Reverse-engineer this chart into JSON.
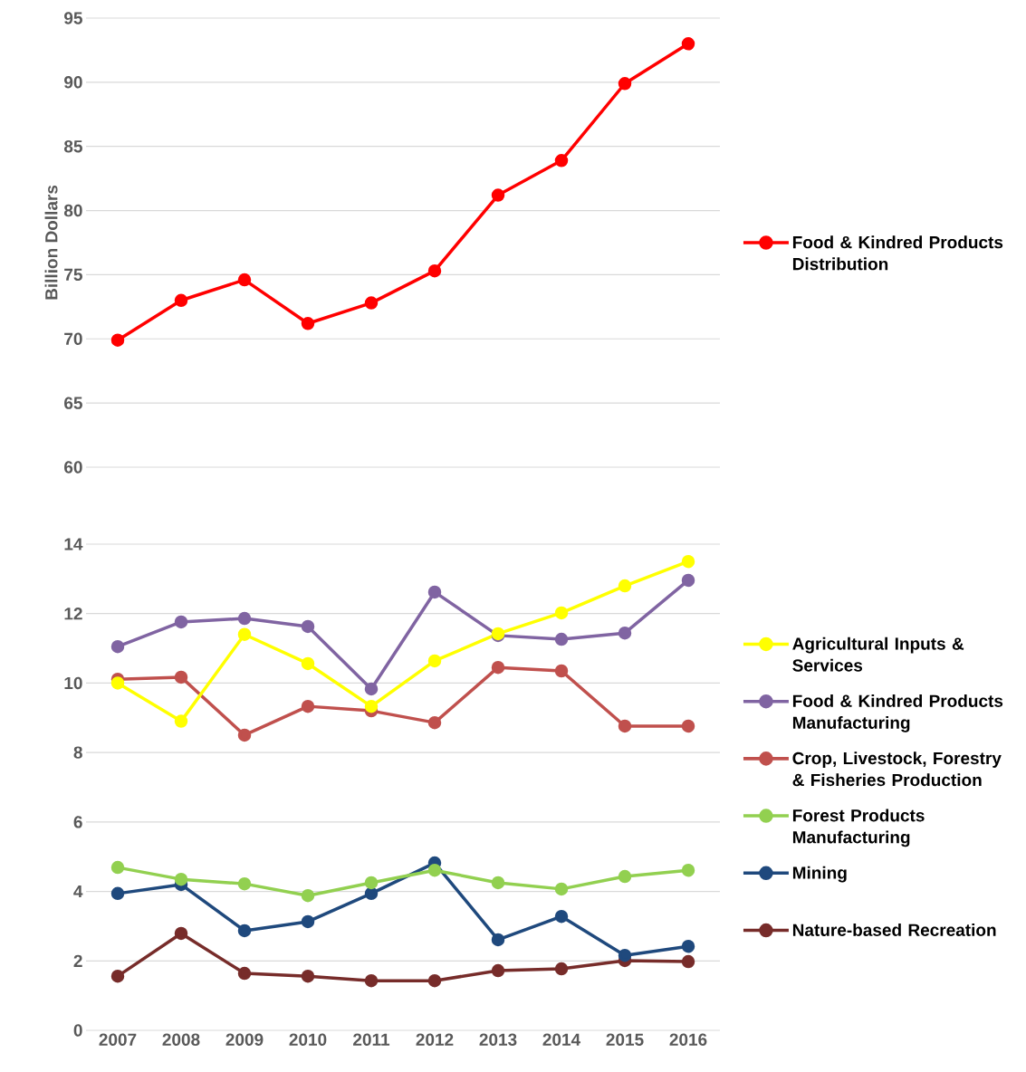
{
  "chart_data": [
    {
      "type": "line",
      "ylabel": "Billion Dollars",
      "categories": [
        "2007",
        "2008",
        "2009",
        "2010",
        "2011",
        "2012",
        "2013",
        "2014",
        "2015",
        "2016"
      ],
      "ylim": [
        60,
        95
      ],
      "yticks": [
        60,
        65,
        70,
        75,
        80,
        85,
        90,
        95
      ],
      "grid": "y",
      "legend": "right",
      "marker": "circle",
      "tick_labels": "y",
      "series": [
        {
          "name": "Food & Kindred Products Distribution",
          "color": "#ff0000",
          "values": [
            69.9,
            73.0,
            74.6,
            71.2,
            72.8,
            75.3,
            81.2,
            83.9,
            89.9,
            93.0
          ]
        }
      ]
    },
    {
      "type": "line",
      "categories": [
        "2007",
        "2008",
        "2009",
        "2010",
        "2011",
        "2012",
        "2013",
        "2014",
        "2015",
        "2016"
      ],
      "ylim": [
        0,
        14
      ],
      "yticks": [
        0,
        2,
        4,
        6,
        8,
        10,
        12,
        14
      ],
      "grid": "y",
      "legend": "right",
      "marker": "circle",
      "series": [
        {
          "name": "Agricultural Inputs & Services",
          "color": "#ffff00",
          "values": [
            10.0,
            8.9,
            11.4,
            10.56,
            9.33,
            10.64,
            11.42,
            12.02,
            12.8,
            13.5
          ]
        },
        {
          "name": "Food & Kindred Products Manufacturing",
          "color": "#8064a2",
          "values": [
            11.05,
            11.76,
            11.86,
            11.63,
            9.83,
            12.62,
            11.37,
            11.26,
            11.44,
            12.96
          ]
        },
        {
          "name": "Crop, Livestock, Forestry & Fisheries Production",
          "color": "#c0504d",
          "values": [
            10.11,
            10.17,
            8.5,
            9.33,
            9.2,
            8.86,
            10.45,
            10.35,
            8.76,
            8.76
          ]
        },
        {
          "name": "Forest Products Manufacturing",
          "color": "#92d050",
          "values": [
            4.69,
            4.35,
            4.22,
            3.88,
            4.25,
            4.61,
            4.25,
            4.07,
            4.43,
            4.61
          ]
        },
        {
          "name": "Mining",
          "color": "#1f497d",
          "values": [
            3.94,
            4.2,
            2.87,
            3.13,
            3.94,
            4.82,
            2.61,
            3.28,
            2.16,
            2.42
          ]
        },
        {
          "name": "Nature-based Recreation",
          "color": "#772c2a",
          "values": [
            1.56,
            2.79,
            1.64,
            1.56,
            1.43,
            1.43,
            1.72,
            1.77,
            2.01,
            1.98
          ]
        }
      ]
    }
  ]
}
